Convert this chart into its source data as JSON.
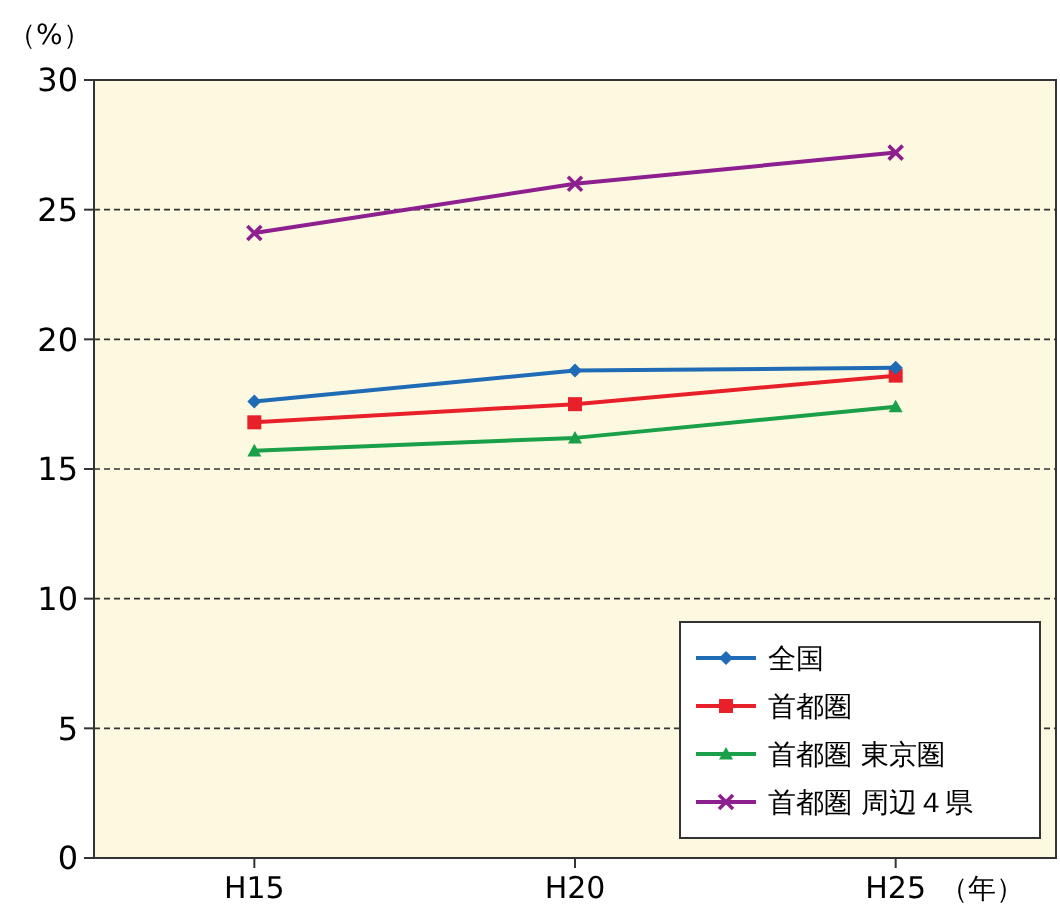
{
  "chart_data": {
    "type": "line",
    "ylabel": "（%）",
    "xlabel": "（年）",
    "categories": [
      "H15",
      "H20",
      "H25"
    ],
    "series": [
      {
        "name": "全国",
        "color": "#1f6bb5",
        "marker": "diamond",
        "values": [
          17.6,
          18.8,
          18.9
        ]
      },
      {
        "name": "首都圏",
        "color": "#e8202a",
        "marker": "square",
        "values": [
          16.8,
          17.5,
          18.6
        ]
      },
      {
        "name": "首都圏 東京圏",
        "color": "#1aa048",
        "marker": "triangle",
        "values": [
          15.7,
          16.2,
          17.4
        ]
      },
      {
        "name": "首都圏 周辺４県",
        "color": "#8e1f8e",
        "marker": "cross",
        "values": [
          24.1,
          26.0,
          27.2
        ]
      }
    ],
    "ylim": [
      0,
      30
    ],
    "yticks": [
      0,
      5,
      10,
      15,
      20,
      25,
      30
    ],
    "grid": "y",
    "legend": "bottom right"
  }
}
